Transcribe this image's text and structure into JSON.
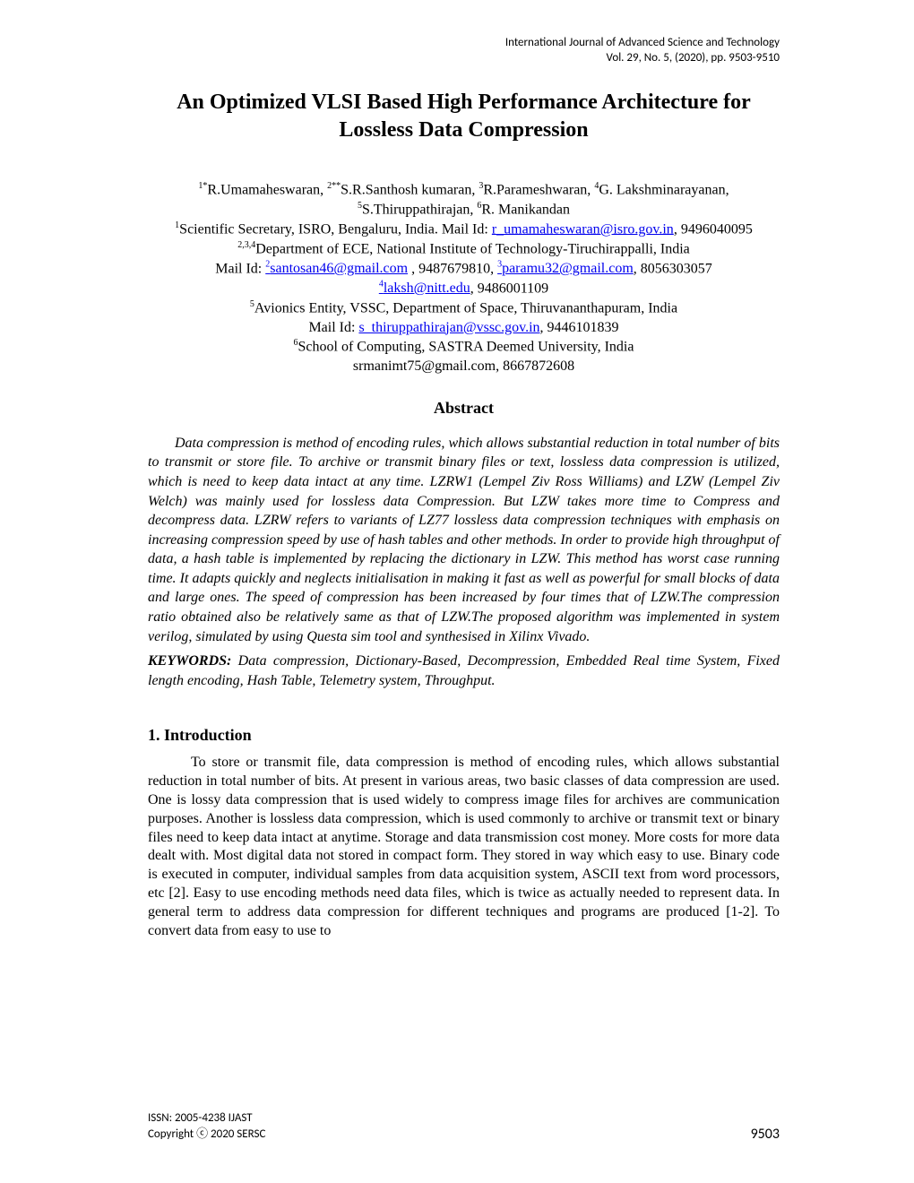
{
  "header": {
    "journal": "International Journal of Advanced Science and Technology",
    "volume": "Vol. 29, No. 5, (2020), pp. 9503-9510"
  },
  "title": "An Optimized VLSI Based High Performance Architecture for Lossless Data Compression",
  "authors": {
    "line1_names": "R.Umamaheswaran, ",
    "a1_sup": "1*",
    "a2_sup": "2**",
    "a2_name": "S.R.Santhosh kumaran, ",
    "a3_sup": "3",
    "a3_name": "R.Parameshwaran, ",
    "a4_sup": "4",
    "a4_name": "G. Lakshminarayanan,",
    "a5_sup": "5",
    "a5_name": "S.Thiruppathirajan, ",
    "a6_sup": "6",
    "a6_name": "R. Manikandan",
    "aff1_sup": "1",
    "aff1_text": "Scientific Secretary, ISRO, Bengaluru, India. Mail Id: ",
    "aff1_email": "r_umamaheswaran@isro.gov.in",
    "aff1_phone": ", 9496040095",
    "aff234_sup": "2,3,4",
    "aff234_text": "Department of ECE, National Institute of Technology-Tiruchirappalli, India",
    "mail_prefix": "Mail Id: ",
    "email2_sup": "2",
    "email2": "santosan46@gmail.com",
    "phone2": " , 9487679810, ",
    "email3_sup": "3",
    "email3": "paramu32@gmail.com",
    "phone3": ", 8056303057",
    "email4_sup": "4",
    "email4": "laksh@nitt.edu",
    "phone4": ", 9486001109",
    "aff5_sup": "5",
    "aff5_text": "Avionics Entity, VSSC, Department of Space, Thiruvananthapuram, India",
    "email5": "s_thiruppathirajan@vssc.gov.in",
    "phone5": ",  9446101839",
    "aff6_sup": "6",
    "aff6_text": "School of Computing, SASTRA Deemed University, India",
    "email6_text": "srmanimt75@gmail.com, 8667872608"
  },
  "abstract": {
    "heading": "Abstract",
    "body": "Data compression is method of encoding rules, which allows substantial reduction in total number of bits to transmit or store file. To archive or transmit binary files or text, lossless data compression is utilized, which is need to keep data intact at any time. LZRW1 (Lempel Ziv Ross Williams) and LZW (Lempel Ziv Welch) was mainly used for lossless data Compression. But LZW takes more time to Compress and decompress data. LZRW refers to variants of LZ77 lossless data compression  techniques with emphasis on increasing compression speed by use of hash tables and other methods. In order to provide high throughput of data, a hash table is implemented by replacing the dictionary in LZW. This method has worst case running time. It adapts quickly and neglects initialisation in making it fast as well as powerful for small blocks of data and large ones. The speed of compression has been increased by four times that of LZW.The compression ratio obtained also be relatively same as that of LZW.The proposed algorithm was implemented in system verilog, simulated by using Questa sim tool and synthesised in Xilinx Vivado."
  },
  "keywords": {
    "label": "KEYWORDS:",
    "text": " Data compression, Dictionary-Based, Decompression, Embedded Real time System, Fixed length encoding, Hash Table, Telemetry system, Throughput."
  },
  "section1": {
    "heading": "1. Introduction",
    "body": "To store or transmit file, data compression is method of encoding rules, which allows substantial reduction in total number of bits. At present in various areas, two basic classes of data compression are used. One is lossy data compression that is used widely to compress image files for archives are communication purposes. Another is lossless data compression, which is used commonly to archive or transmit text or binary files need to keep data intact at anytime.  Storage and data transmission cost money. More costs for more data dealt with. Most digital data not stored in compact form. They stored in way which easy to use.  Binary code is executed in computer, individual samples from data acquisition system, ASCII text from word processors, etc [2].  Easy to use encoding methods need data files, which is twice as actually needed to represent data. In general term to address data compression for different techniques and programs are produced [1-2]. To convert data from easy to use to"
  },
  "footer": {
    "issn": "ISSN: 2005-4238 IJAST",
    "copyright": "Copyright ⓒ 2020 SERSC",
    "page": "9503"
  }
}
